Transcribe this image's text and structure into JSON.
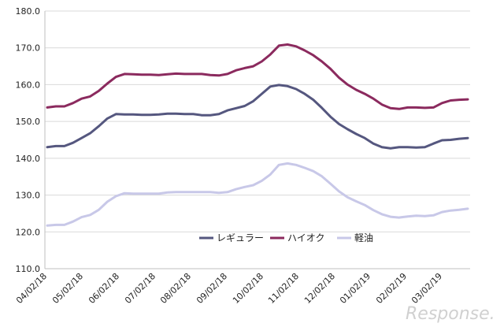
{
  "chart_data": {
    "type": "line",
    "title": "",
    "xlabel": "",
    "ylabel": "",
    "ylim": [
      110,
      180
    ],
    "yticks": [
      "110.0",
      "120.0",
      "130.0",
      "140.0",
      "150.0",
      "160.0",
      "170.0",
      "180.0"
    ],
    "xtick_labels": [
      "04/02/18",
      "05/02/18",
      "06/02/18",
      "07/02/18",
      "08/02/18",
      "09/02/18",
      "10/02/18",
      "11/02/18",
      "12/02/18",
      "01/02/19",
      "02/02/19",
      "03/02/19"
    ],
    "grid": true,
    "legend_position": "bottom-center",
    "series": [
      {
        "name": "レギュラー",
        "color": "#55577f",
        "values": [
          143.0,
          143.3,
          143.3,
          144.2,
          145.5,
          146.8,
          148.7,
          150.8,
          152.0,
          151.9,
          151.9,
          151.8,
          151.8,
          151.9,
          152.1,
          152.1,
          152.0,
          152.0,
          151.7,
          151.7,
          152.0,
          153.0,
          153.6,
          154.2,
          155.5,
          157.5,
          159.5,
          159.9,
          159.6,
          158.8,
          157.5,
          155.9,
          153.7,
          151.3,
          149.3,
          147.9,
          146.6,
          145.5,
          144.0,
          143.0,
          142.7,
          143.0,
          143.0,
          142.9,
          143.0,
          144.0,
          144.9,
          145.0,
          145.3,
          145.5
        ]
      },
      {
        "name": "ハイオク",
        "color": "#8b2a5e",
        "values": [
          153.8,
          154.1,
          154.1,
          155.0,
          156.2,
          156.8,
          158.3,
          160.3,
          162.1,
          162.9,
          162.8,
          162.7,
          162.7,
          162.6,
          162.8,
          163.0,
          162.9,
          162.9,
          162.9,
          162.6,
          162.5,
          162.9,
          163.9,
          164.5,
          165.0,
          166.3,
          168.2,
          170.6,
          170.9,
          170.4,
          169.3,
          168.0,
          166.3,
          164.3,
          161.9,
          160.0,
          158.6,
          157.5,
          156.2,
          154.6,
          153.6,
          153.4,
          153.8,
          153.8,
          153.7,
          153.8,
          155.0,
          155.7,
          155.9,
          156.0
        ]
      },
      {
        "name": "軽油",
        "color": "#c8c8e8",
        "values": [
          121.7,
          121.9,
          121.9,
          122.8,
          124.0,
          124.6,
          126.0,
          128.2,
          129.7,
          130.5,
          130.4,
          130.4,
          130.4,
          130.4,
          130.7,
          130.8,
          130.8,
          130.8,
          130.8,
          130.8,
          130.6,
          130.8,
          131.6,
          132.2,
          132.7,
          133.9,
          135.6,
          138.2,
          138.6,
          138.2,
          137.4,
          136.5,
          135.1,
          133.1,
          131.0,
          129.4,
          128.3,
          127.3,
          125.9,
          124.8,
          124.1,
          123.9,
          124.2,
          124.4,
          124.3,
          124.5,
          125.4,
          125.8,
          126.0,
          126.3
        ]
      }
    ]
  },
  "watermark": "Response."
}
